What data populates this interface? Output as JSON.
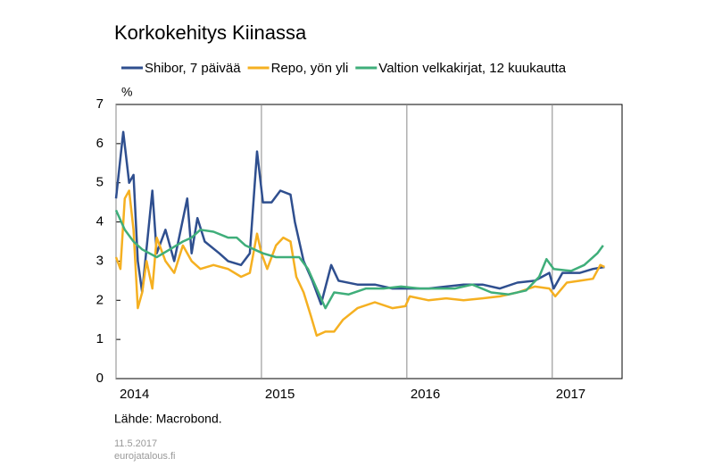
{
  "chart_data": {
    "type": "line",
    "title": "Korkokehitys Kiinassa",
    "y_label": "%",
    "source": "Lähde: Macrobond.",
    "date": "11.5.2017",
    "site": "eurojatalous.fi",
    "xlim": [
      2014,
      2017.48
    ],
    "xticks": [
      2014,
      2015,
      2016,
      2017
    ],
    "ylim": [
      0,
      7
    ],
    "yticks": [
      0,
      1,
      2,
      3,
      4,
      5,
      6,
      7
    ],
    "grid": "x",
    "series": [
      {
        "name": "Shibor, 7 päivää",
        "color": "#2f4f8f",
        "x": [
          2014.0,
          2014.05,
          2014.09,
          2014.12,
          2014.15,
          2014.18,
          2014.25,
          2014.28,
          2014.34,
          2014.4,
          2014.49,
          2014.52,
          2014.56,
          2014.61,
          2014.71,
          2014.77,
          2014.86,
          2014.92,
          2014.97,
          2015.01,
          2015.07,
          2015.13,
          2015.2,
          2015.23,
          2015.29,
          2015.35,
          2015.41,
          2015.48,
          2015.53,
          2015.66,
          2015.78,
          2015.9,
          2016.02,
          2016.15,
          2016.27,
          2016.39,
          2016.52,
          2016.64,
          2016.76,
          2016.88,
          2016.98,
          2017.01,
          2017.07,
          2017.19,
          2017.28,
          2017.36
        ],
        "values": [
          4.6,
          6.3,
          5.0,
          5.2,
          3.0,
          2.2,
          4.8,
          3.2,
          3.8,
          3.0,
          4.6,
          3.2,
          4.1,
          3.5,
          3.2,
          3.0,
          2.9,
          3.2,
          5.8,
          4.5,
          4.5,
          4.8,
          4.7,
          4.0,
          3.0,
          2.5,
          1.9,
          2.9,
          2.5,
          2.4,
          2.4,
          2.3,
          2.3,
          2.3,
          2.35,
          2.4,
          2.4,
          2.3,
          2.45,
          2.5,
          2.7,
          2.3,
          2.7,
          2.7,
          2.8,
          2.85
        ]
      },
      {
        "name": "Repo, yön yli",
        "color": "#f5b021",
        "x": [
          2014.0,
          2014.03,
          2014.06,
          2014.09,
          2014.12,
          2014.15,
          2014.18,
          2014.21,
          2014.25,
          2014.28,
          2014.34,
          2014.4,
          2014.46,
          2014.52,
          2014.58,
          2014.67,
          2014.77,
          2014.86,
          2014.92,
          2014.97,
          2015.0,
          2015.04,
          2015.1,
          2015.15,
          2015.2,
          2015.24,
          2015.29,
          2015.34,
          2015.38,
          2015.44,
          2015.5,
          2015.56,
          2015.66,
          2015.78,
          2015.9,
          2015.99,
          2016.02,
          2016.15,
          2016.27,
          2016.39,
          2016.52,
          2016.64,
          2016.76,
          2016.88,
          2016.98,
          2017.02,
          2017.1,
          2017.19,
          2017.28,
          2017.33,
          2017.36
        ],
        "values": [
          3.1,
          2.8,
          4.6,
          4.8,
          3.8,
          1.8,
          2.2,
          3.0,
          2.3,
          3.6,
          3.0,
          2.7,
          3.4,
          3.0,
          2.8,
          2.9,
          2.8,
          2.6,
          2.7,
          3.7,
          3.2,
          2.8,
          3.4,
          3.6,
          3.5,
          2.6,
          2.2,
          1.6,
          1.1,
          1.2,
          1.2,
          1.5,
          1.8,
          1.95,
          1.8,
          1.85,
          2.1,
          2.0,
          2.05,
          2.0,
          2.05,
          2.1,
          2.2,
          2.35,
          2.3,
          2.1,
          2.45,
          2.5,
          2.55,
          2.9,
          2.85
        ]
      },
      {
        "name": "Valtion velkakirjat, 12 kuukautta",
        "color": "#3fae7a",
        "x": [
          2014.0,
          2014.06,
          2014.12,
          2014.18,
          2014.28,
          2014.37,
          2014.46,
          2014.52,
          2014.58,
          2014.67,
          2014.77,
          2014.83,
          2014.89,
          2014.95,
          2015.01,
          2015.1,
          2015.2,
          2015.26,
          2015.32,
          2015.38,
          2015.44,
          2015.5,
          2015.6,
          2015.72,
          2015.84,
          2015.96,
          2016.09,
          2016.21,
          2016.33,
          2016.45,
          2016.58,
          2016.7,
          2016.82,
          2016.91,
          2016.96,
          2017.01,
          2017.13,
          2017.22,
          2017.31,
          2017.35
        ],
        "values": [
          4.3,
          3.8,
          3.5,
          3.3,
          3.1,
          3.3,
          3.5,
          3.6,
          3.8,
          3.75,
          3.6,
          3.6,
          3.4,
          3.3,
          3.2,
          3.1,
          3.1,
          3.1,
          2.8,
          2.3,
          1.8,
          2.2,
          2.15,
          2.3,
          2.3,
          2.35,
          2.3,
          2.3,
          2.3,
          2.4,
          2.2,
          2.15,
          2.25,
          2.6,
          3.05,
          2.8,
          2.75,
          2.9,
          3.2,
          3.4
        ]
      }
    ]
  }
}
